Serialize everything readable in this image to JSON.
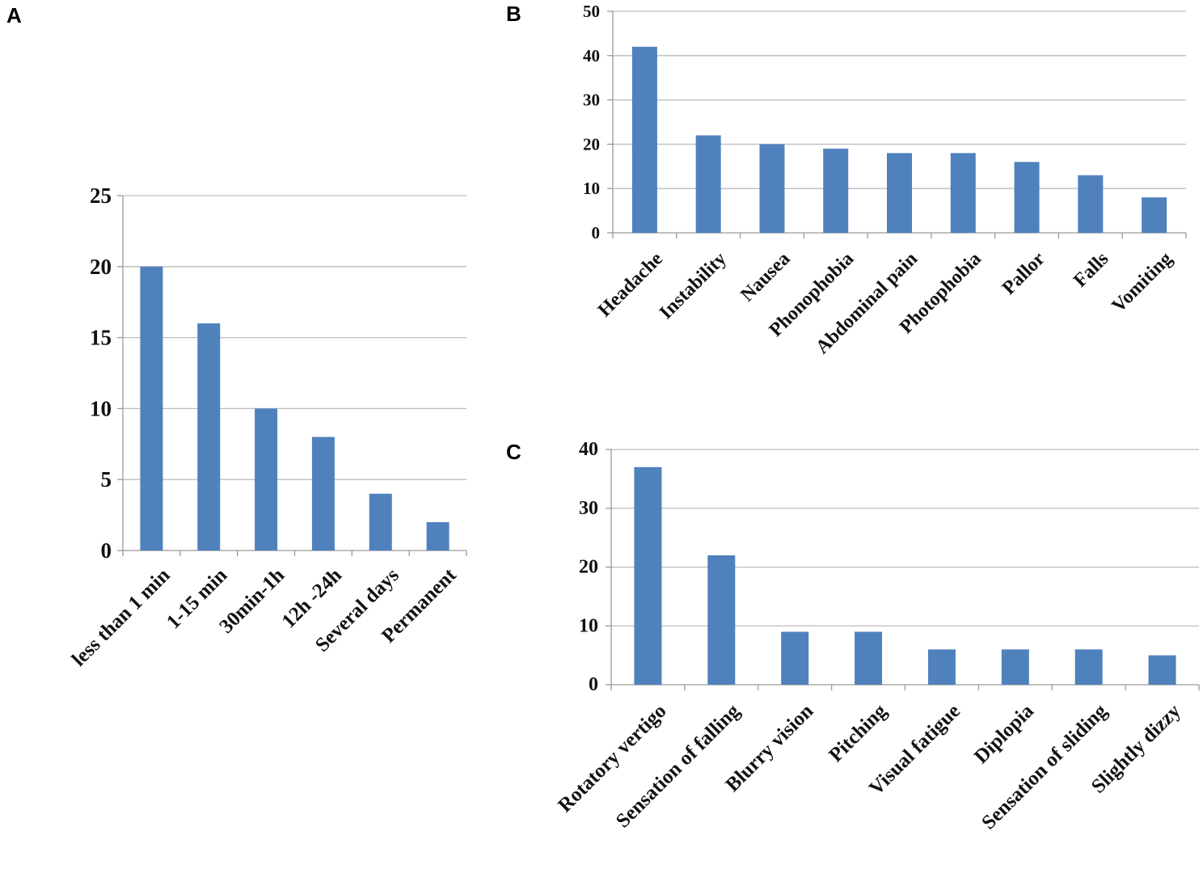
{
  "chart_data": [
    {
      "panel": "A",
      "type": "bar",
      "title": "",
      "xlabel": "",
      "ylabel": "",
      "categories": [
        "less than 1 min",
        "1-15 min",
        "30min-1h",
        "12h -24h",
        "Several days",
        "Permanent"
      ],
      "values": [
        20,
        16,
        10,
        8,
        4,
        2
      ],
      "ylim": [
        0,
        25
      ],
      "yticks": [
        0,
        5,
        10,
        15,
        20,
        25
      ],
      "grid": true,
      "bar_color": "#4f81bd"
    },
    {
      "panel": "B",
      "type": "bar",
      "title": "",
      "xlabel": "",
      "ylabel": "",
      "categories": [
        "Headache",
        "Instability",
        "Nausea",
        "Phonophobia",
        "Abdominal pain",
        "Photophobia",
        "Pallor",
        "Falls",
        "Vomiting"
      ],
      "values": [
        42,
        22,
        20,
        19,
        18,
        18,
        16,
        13,
        8
      ],
      "ylim": [
        0,
        50
      ],
      "yticks": [
        0,
        10,
        20,
        30,
        40,
        50
      ],
      "grid": true,
      "bar_color": "#4f81bd"
    },
    {
      "panel": "C",
      "type": "bar",
      "title": "",
      "xlabel": "",
      "ylabel": "",
      "categories": [
        "Rotatory vertigo",
        "Sensation of falling",
        "Blurry vision",
        "Pitching",
        "Visual fatigue",
        "Diplopia",
        "Sensation of sliding",
        "Slightly dizzy"
      ],
      "values": [
        37,
        22,
        9,
        9,
        6,
        6,
        6,
        5
      ],
      "ylim": [
        0,
        40
      ],
      "yticks": [
        0,
        10,
        20,
        30,
        40
      ],
      "grid": true,
      "bar_color": "#4f81bd"
    }
  ]
}
